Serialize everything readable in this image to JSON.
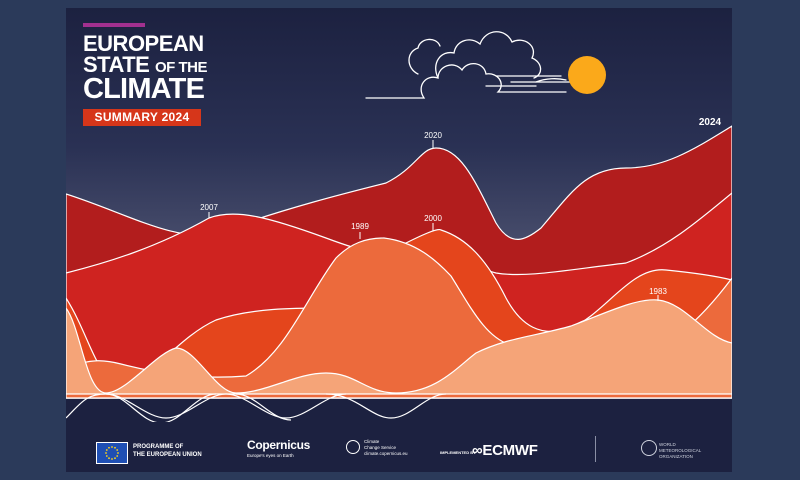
{
  "cover": {
    "title_line1": "EUROPEAN",
    "title_line2_main": "STATE",
    "title_line2_small": "OF THE",
    "title_line3": "CLIMATE",
    "badge": "SUMMARY 2024"
  },
  "year_labels": {
    "y2007": "2007",
    "y2020": "2020",
    "y1989": "1989",
    "y2000": "2000",
    "y1983": "1983",
    "y2024": "2024"
  },
  "colors": {
    "band_dark_red": "#b21d1d",
    "band_red": "#cf2320",
    "band_orange": "#e4451c",
    "band_light_orange": "#ec6a3c",
    "band_peach": "#f5a478",
    "sun": "#fba91a",
    "accent_purple": "#a2308f"
  },
  "footer": {
    "eu_line1": "PROGRAMME OF",
    "eu_line2": "THE EUROPEAN UNION",
    "copernicus": "Copernicus",
    "copernicus_sub": "Europe's eyes on Earth",
    "c3s_line1": "Climate",
    "c3s_line2": "Change Service",
    "c3s_line3": "climate.copernicus.eu",
    "implemented_by": "IMPLEMENTED BY",
    "ecmwf": "ECMWF",
    "wmo_line1": "WORLD",
    "wmo_line2": "METEOROLOGICAL",
    "wmo_line3": "ORGANIZATION"
  },
  "icons": [
    "eu-flag-icon",
    "copernicus-logo-icon",
    "c3s-logo-icon",
    "ecmwf-logo-icon",
    "wmo-logo-icon",
    "cloud-icon",
    "sun-icon"
  ]
}
